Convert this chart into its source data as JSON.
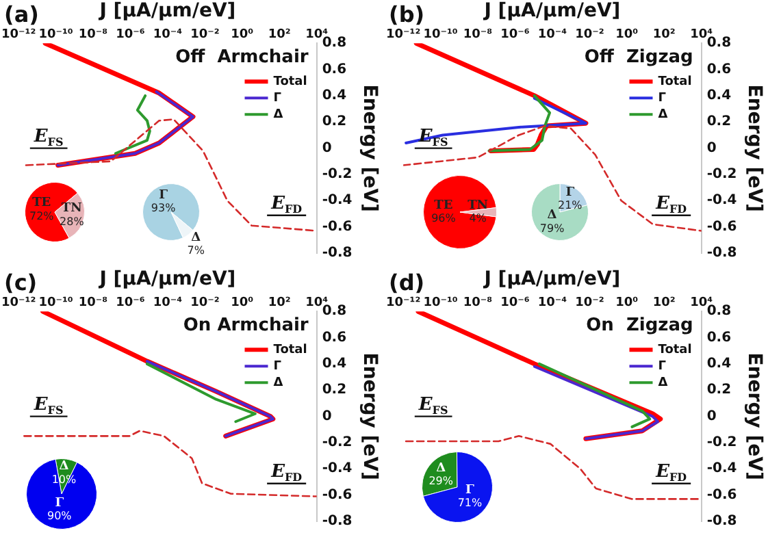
{
  "chart_data": [
    {
      "type": "line",
      "xlabel": "J [μA/μm/eV]",
      "ylabel": "Energy [eV]",
      "log": "x",
      "legend": "top right",
      "xlim": [
        1e-12,
        10000.0
      ],
      "xticks": [
        {
          "value": 1e-12,
          "label": "10⁻¹²"
        },
        {
          "value": 1e-10,
          "label": "10⁻¹⁰"
        },
        {
          "value": 1e-08,
          "label": "10⁻⁸"
        },
        {
          "value": 1e-06,
          "label": "10⁻⁶"
        },
        {
          "value": 0.0001,
          "label": "10⁻⁴"
        },
        {
          "value": 0.01,
          "label": "10⁻²"
        },
        {
          "value": 1,
          "label": "10⁰"
        },
        {
          "value": 100,
          "label": "10²"
        },
        {
          "value": 10000.0,
          "label": "10⁴"
        }
      ],
      "ylim": [
        -0.8,
        0.8
      ],
      "yticks": [
        0.8,
        0.6,
        0.4,
        0.2,
        0,
        -0.2,
        -0.4,
        -0.6,
        -0.8
      ],
      "annotations": [
        "(a)",
        "Off  Armchair",
        "E$_{FS}$",
        "E$_{FD}$"
      ],
      "series": [
        {
          "name": "Total",
          "color": "#ff0000",
          "x": [
            2.7e-11,
            3.5e-05,
            0.0023,
            3.5e-05,
            1.8e-06,
            1.3e-10
          ],
          "values": [
            0.8,
            0.42,
            0.24,
            0.04,
            -0.04,
            -0.13
          ]
        },
        {
          "name": "Γ",
          "color": "#4b28d0",
          "x": [
            2.5e-05,
            0.0023,
            3.5e-05,
            1.8e-06,
            1.3e-10
          ],
          "values": [
            0.43,
            0.24,
            0.04,
            -0.04,
            -0.13
          ]
        },
        {
          "name": "Δ",
          "color": "#2e9a2e",
          "x": [
            6.3e-06,
            2.4e-06,
            7.9e-06,
            1.1e-05,
            7.9e-06,
            1.6e-07
          ],
          "values": [
            0.4,
            0.29,
            0.21,
            0.13,
            0.06,
            -0.04
          ]
        },
        {
          "color": "#d42a2a",
          "line_style": "dashed",
          "x": [
            2.5e-12,
            8.9e-08,
            3.5e-05,
            0.00021,
            0.0079,
            0.16,
            3.2,
            10000.0
          ],
          "values": [
            -0.13,
            -0.1,
            0.21,
            0.22,
            -0.02,
            -0.4,
            -0.59,
            -0.63
          ]
        }
      ]
    },
    {
      "type": "pie",
      "categories": [
        "TE",
        "TN"
      ],
      "values": [
        72,
        28
      ],
      "colors": [
        "#ff0000",
        "#e8b4b8"
      ],
      "value_labels": [
        "72%",
        "28%"
      ]
    },
    {
      "type": "pie",
      "categories": [
        "Γ",
        "Δ"
      ],
      "values": [
        93,
        7
      ],
      "colors": [
        "#a9d3e3",
        "#eef5f8"
      ],
      "value_labels": [
        "93%",
        "7%"
      ]
    },
    {
      "type": "line",
      "xlabel": "J [μA/μm/eV]",
      "ylabel": "Energy [eV]",
      "log": "x",
      "legend": "top right",
      "xlim": [
        1e-12,
        10000.0
      ],
      "xticks": [
        {
          "value": 1e-12,
          "label": "10⁻¹²"
        },
        {
          "value": 1e-10,
          "label": "10⁻¹⁰"
        },
        {
          "value": 1e-08,
          "label": "10⁻⁸"
        },
        {
          "value": 1e-06,
          "label": "10⁻⁶"
        },
        {
          "value": 0.0001,
          "label": "10⁻⁴"
        },
        {
          "value": 0.01,
          "label": "10⁻²"
        },
        {
          "value": 1,
          "label": "10⁰"
        },
        {
          "value": 100,
          "label": "10²"
        },
        {
          "value": 10000.0,
          "label": "10⁴"
        }
      ],
      "ylim": [
        -0.8,
        0.8
      ],
      "yticks": [
        0.8,
        0.6,
        0.4,
        0.2,
        0,
        -0.2,
        -0.4,
        -0.6,
        -0.8
      ],
      "annotations": [
        "(b)",
        "Off  Zigzag",
        "E$_{FS}$",
        "E$_{FD}$"
      ],
      "series": [
        {
          "name": "Total",
          "color": "#ff0000",
          "x": [
            5e-12,
            1.1e-05,
            0.0063,
            5e-05,
            2.5e-05,
            1.6e-05,
            1e-05,
            5e-08
          ],
          "values": [
            0.8,
            0.4,
            0.19,
            0.17,
            0.1,
            0.03,
            -0.01,
            -0.02
          ]
        },
        {
          "name": "Γ",
          "color": "#2a2ee0",
          "x": [
            1.1e-05,
            0.0063,
            1.6e-06,
            1.3e-10,
            1.4e-12
          ],
          "values": [
            0.38,
            0.19,
            0.16,
            0.1,
            0.04
          ]
        },
        {
          "name": "Δ",
          "color": "#2e9a2e",
          "x": [
            1.1e-05,
            7.2e-05,
            4e-05,
            2.8e-05,
            6.3e-06,
            4e-08
          ],
          "values": [
            0.4,
            0.27,
            0.17,
            0.06,
            -0.01,
            -0.02
          ]
        },
        {
          "color": "#d42a2a",
          "line_style": "dashed",
          "x": [
            1e-12,
            1e-08,
            1.6e-06,
            4e-05,
            0.001,
            0.02,
            0.5,
            25,
            10000.0
          ],
          "values": [
            -0.13,
            -0.07,
            0.1,
            0.17,
            0.15,
            -0.05,
            -0.4,
            -0.58,
            -0.63
          ]
        }
      ]
    },
    {
      "type": "pie",
      "categories": [
        "TE",
        "TN"
      ],
      "values": [
        96,
        4
      ],
      "colors": [
        "#ff0000",
        "#e8b4b8"
      ],
      "value_labels": [
        "96%",
        "4%"
      ]
    },
    {
      "type": "pie",
      "categories": [
        "Γ",
        "Δ"
      ],
      "values": [
        21,
        79
      ],
      "colors": [
        "#b4d4e8",
        "#a8dcc4"
      ],
      "value_labels": [
        "21%",
        "79%"
      ]
    },
    {
      "type": "line",
      "xlabel": "J [μA/μm/eV]",
      "ylabel": "Energy [eV]",
      "log": "x",
      "legend": "top right",
      "xlim": [
        1e-12,
        10000.0
      ],
      "xticks": [
        {
          "value": 1e-12,
          "label": "10⁻¹²"
        },
        {
          "value": 1e-10,
          "label": "10⁻¹⁰"
        },
        {
          "value": 1e-08,
          "label": "10⁻⁸"
        },
        {
          "value": 1e-06,
          "label": "10⁻⁶"
        },
        {
          "value": 0.0001,
          "label": "10⁻⁴"
        },
        {
          "value": 0.01,
          "label": "10⁻²"
        },
        {
          "value": 1,
          "label": "10⁰"
        },
        {
          "value": 100,
          "label": "10²"
        },
        {
          "value": 10000.0,
          "label": "10⁴"
        }
      ],
      "ylim": [
        -0.8,
        0.8
      ],
      "yticks": [
        0.8,
        0.6,
        0.4,
        0.2,
        0,
        -0.2,
        -0.4,
        -0.6,
        -0.8
      ],
      "annotations": [
        "(c)",
        "On Armchair",
        "E$_{FS}$",
        "E$_{FD}$"
      ],
      "series": [
        {
          "name": "Total",
          "color": "#ff0000",
          "x": [
            2e-11,
            7.9e-06,
            0.04,
            33,
            45,
            0.13
          ],
          "values": [
            0.8,
            0.42,
            0.19,
            0,
            -0.02,
            -0.15
          ]
        },
        {
          "name": "Γ",
          "color": "#4b28d0",
          "x": [
            7.9e-06,
            0.04,
            33,
            45,
            0.13
          ],
          "values": [
            0.42,
            0.19,
            0,
            -0.02,
            -0.15
          ]
        },
        {
          "name": "Δ",
          "color": "#2e9a2e",
          "x": [
            7.9e-06,
            0.04,
            5,
            0.45
          ],
          "values": [
            0.4,
            0.13,
            0.02,
            -0.04
          ]
        },
        {
          "color": "#d42a2a",
          "line_style": "dashed",
          "x": [
            2e-12,
            8.9e-07,
            3.2e-06,
            6.3e-05,
            0.002,
            0.007,
            0.25,
            10000.0
          ],
          "values": [
            -0.15,
            -0.15,
            -0.11,
            -0.15,
            -0.32,
            -0.51,
            -0.59,
            -0.61
          ]
        }
      ]
    },
    {
      "type": "pie",
      "categories": [
        "Δ",
        "Γ"
      ],
      "values": [
        10,
        90
      ],
      "colors": [
        "#1e8c1e",
        "#0000f0"
      ],
      "value_labels": [
        "10%",
        "90%"
      ]
    },
    {
      "type": "line",
      "xlabel": "J [μA/μm/eV]",
      "ylabel": "Energy [eV]",
      "log": "x",
      "legend": "top right",
      "xlim": [
        1e-12,
        10000.0
      ],
      "xticks": [
        {
          "value": 1e-12,
          "label": "10⁻¹²"
        },
        {
          "value": 1e-10,
          "label": "10⁻¹⁰"
        },
        {
          "value": 1e-08,
          "label": "10⁻⁸"
        },
        {
          "value": 1e-06,
          "label": "10⁻⁶"
        },
        {
          "value": 0.0001,
          "label": "10⁻⁴"
        },
        {
          "value": 0.01,
          "label": "10⁻²"
        },
        {
          "value": 1,
          "label": "10⁰"
        },
        {
          "value": 100,
          "label": "10²"
        },
        {
          "value": 10000.0,
          "label": "10⁴"
        }
      ],
      "ylim": [
        -0.8,
        0.8
      ],
      "yticks": [
        0.8,
        0.6,
        0.4,
        0.2,
        0,
        -0.2,
        -0.4,
        -0.6,
        -0.8
      ],
      "annotations": [
        "(d)",
        "On  Zigzag",
        "E$_{FS}$",
        "E$_{FD}$"
      ],
      "series": [
        {
          "name": "Total",
          "color": "#ff0000",
          "x": [
            6.3e-12,
            1.1e-05,
            24,
            63,
            6.8,
            0.0063
          ],
          "values": [
            0.8,
            0.4,
            0.02,
            -0.02,
            -0.11,
            -0.17
          ]
        },
        {
          "name": "Γ",
          "color": "#4b28d0",
          "x": [
            1.1e-05,
            24,
            46,
            6.8,
            0.0063
          ],
          "values": [
            0.38,
            0,
            -0.04,
            -0.11,
            -0.17
          ]
        },
        {
          "name": "Δ",
          "color": "#2e9a2e",
          "x": [
            2e-05,
            6.8,
            17,
            1.9
          ],
          "values": [
            0.4,
            0.04,
            -0.02,
            -0.08
          ]
        },
        {
          "color": "#d42a2a",
          "line_style": "dashed",
          "x": [
            1.4e-12,
            1.3e-07,
            1.6e-06,
            7.9e-05,
            0.0032,
            0.022,
            1.9,
            10000.0
          ],
          "values": [
            -0.19,
            -0.19,
            -0.15,
            -0.21,
            -0.4,
            -0.55,
            -0.63,
            -0.63
          ]
        }
      ]
    },
    {
      "type": "pie",
      "categories": [
        "Δ",
        "Γ"
      ],
      "values": [
        29,
        71
      ],
      "colors": [
        "#1e8c1e",
        "#0a14f0"
      ],
      "value_labels": [
        "29%",
        "71%"
      ]
    }
  ]
}
